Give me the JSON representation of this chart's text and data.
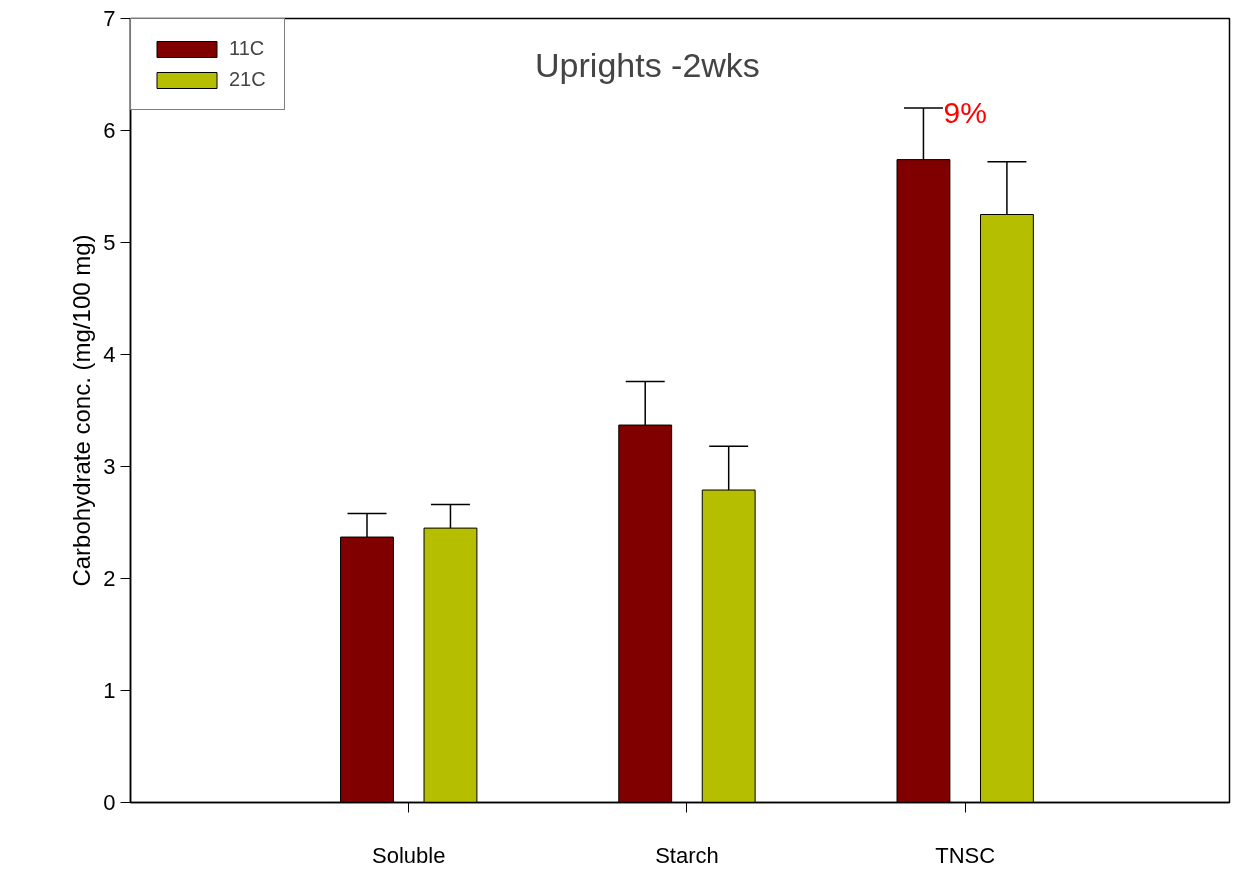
{
  "chart_data": {
    "type": "bar",
    "title": "Uprights  -2wks",
    "ylabel": "Carbohydrate conc. (mg/100 mg)",
    "categories": [
      "Soluble",
      "Starch",
      "TNSC"
    ],
    "series": [
      {
        "name": "11C",
        "color": "#800000",
        "values": [
          2.37,
          3.37,
          5.74
        ],
        "errors": [
          [
            2.37,
            2.58
          ],
          [
            3.37,
            3.76
          ],
          [
            5.74,
            6.2
          ]
        ]
      },
      {
        "name": "21C",
        "color": "#b5bf00",
        "values": [
          2.45,
          2.79,
          5.25
        ],
        "errors": [
          [
            2.45,
            2.66
          ],
          [
            2.79,
            3.18
          ],
          [
            5.25,
            5.72
          ]
        ]
      }
    ],
    "ylim": [
      0,
      7
    ],
    "yticks": [
      0,
      1,
      2,
      3,
      4,
      5,
      6,
      7
    ],
    "grid": false,
    "legend": "top left",
    "annotations": [
      "9%"
    ]
  }
}
